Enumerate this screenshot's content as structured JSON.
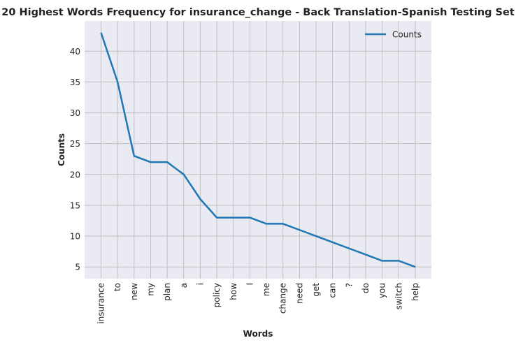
{
  "chart_data": {
    "type": "line",
    "title": "20 Highest Words Frequency for insurance_change - Back Translation-Spanish Testing Set",
    "xlabel": "Words",
    "ylabel": "Counts",
    "categories": [
      "insurance",
      "to",
      "new",
      "my",
      "plan",
      "a",
      "i",
      "policy",
      "how",
      "I",
      "me",
      "change",
      "need",
      "get",
      "can",
      "?",
      "do",
      "you",
      "switch",
      "help"
    ],
    "series": [
      {
        "name": "Counts",
        "values": [
          43,
          35,
          23,
          22,
          22,
          20,
          16,
          13,
          13,
          13,
          12,
          12,
          11,
          10,
          9,
          8,
          7,
          6,
          6,
          5
        ],
        "color": "#1f77b4"
      }
    ],
    "yticks": [
      5,
      10,
      15,
      20,
      25,
      30,
      35,
      40
    ],
    "ylim": [
      3.1,
      44.9
    ],
    "grid": true,
    "legend": "top-right",
    "background": "#eaeaf2",
    "grid_color": "#c0c0c0"
  }
}
